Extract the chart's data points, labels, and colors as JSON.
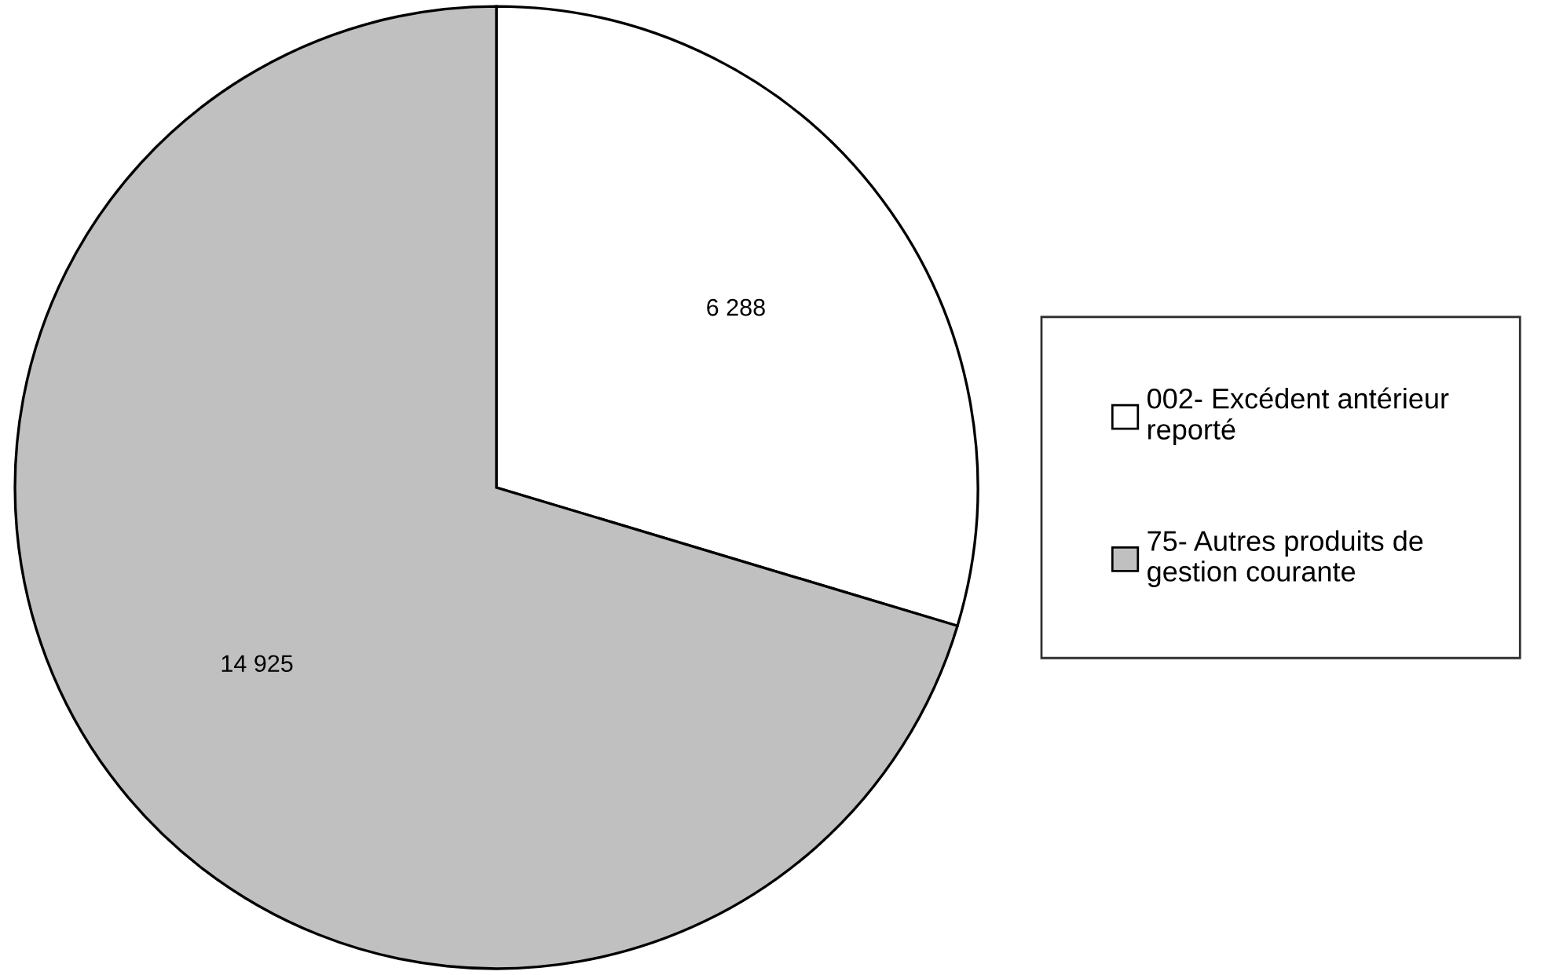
{
  "chart_data": {
    "type": "pie",
    "categories": [
      "002- Excédent antérieur reporté",
      "75- Autres produits de gestion courante"
    ],
    "values": [
      6288,
      14925
    ],
    "value_labels": [
      "6 288",
      "14 925"
    ],
    "colors": [
      "#ffffff",
      "#c0c0c0"
    ],
    "legend": "right"
  }
}
